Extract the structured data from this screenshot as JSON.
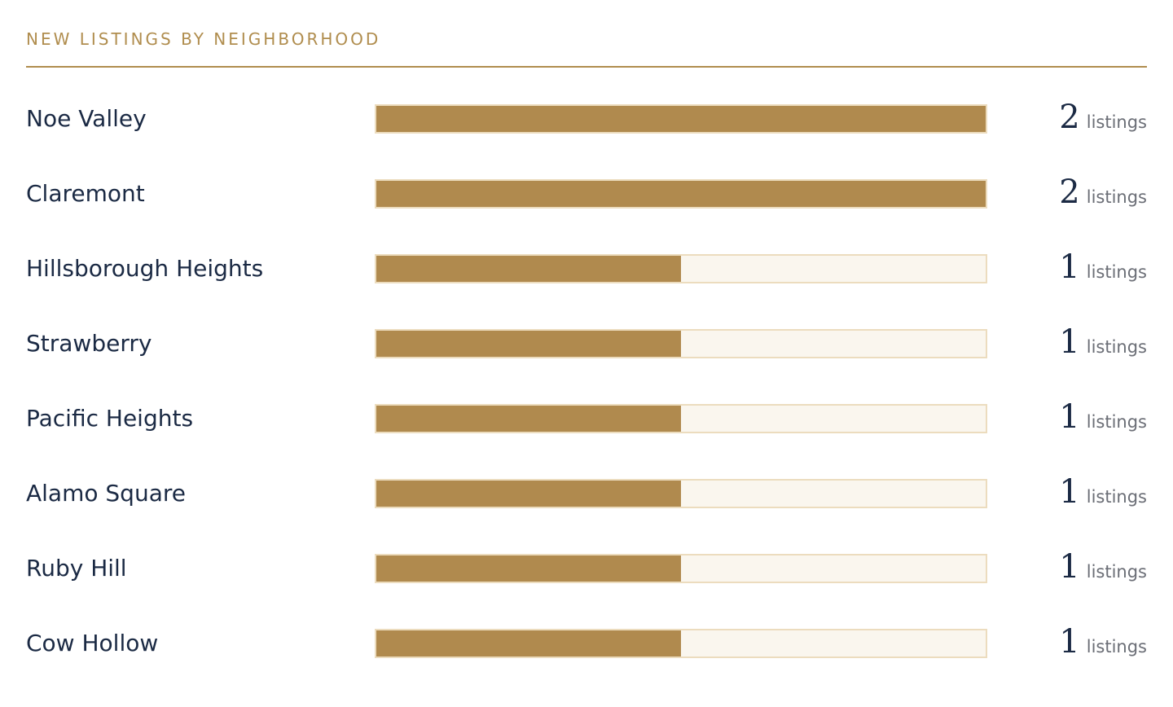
{
  "header": {
    "title": "NEW LISTINGS BY NEIGHBORHOOD"
  },
  "colors": {
    "accent": "#b08d4e",
    "bar_fill": "#b08a4e",
    "bar_track": "#faf6ee",
    "bar_border": "#ecdcbe",
    "text_primary": "#1b2a44",
    "text_muted": "#6b6e76"
  },
  "chart_data": {
    "type": "bar",
    "orientation": "horizontal",
    "title": "NEW LISTINGS BY NEIGHBORHOOD",
    "categories": [
      "Noe Valley",
      "Claremont",
      "Hillsborough Heights",
      "Strawberry",
      "Pacific Heights",
      "Alamo Square",
      "Ruby Hill",
      "Cow Hollow"
    ],
    "values": [
      2,
      2,
      1,
      1,
      1,
      1,
      1,
      1
    ],
    "value_unit": "listings",
    "xlim": [
      0,
      2
    ],
    "grid": false,
    "legend": "none"
  }
}
